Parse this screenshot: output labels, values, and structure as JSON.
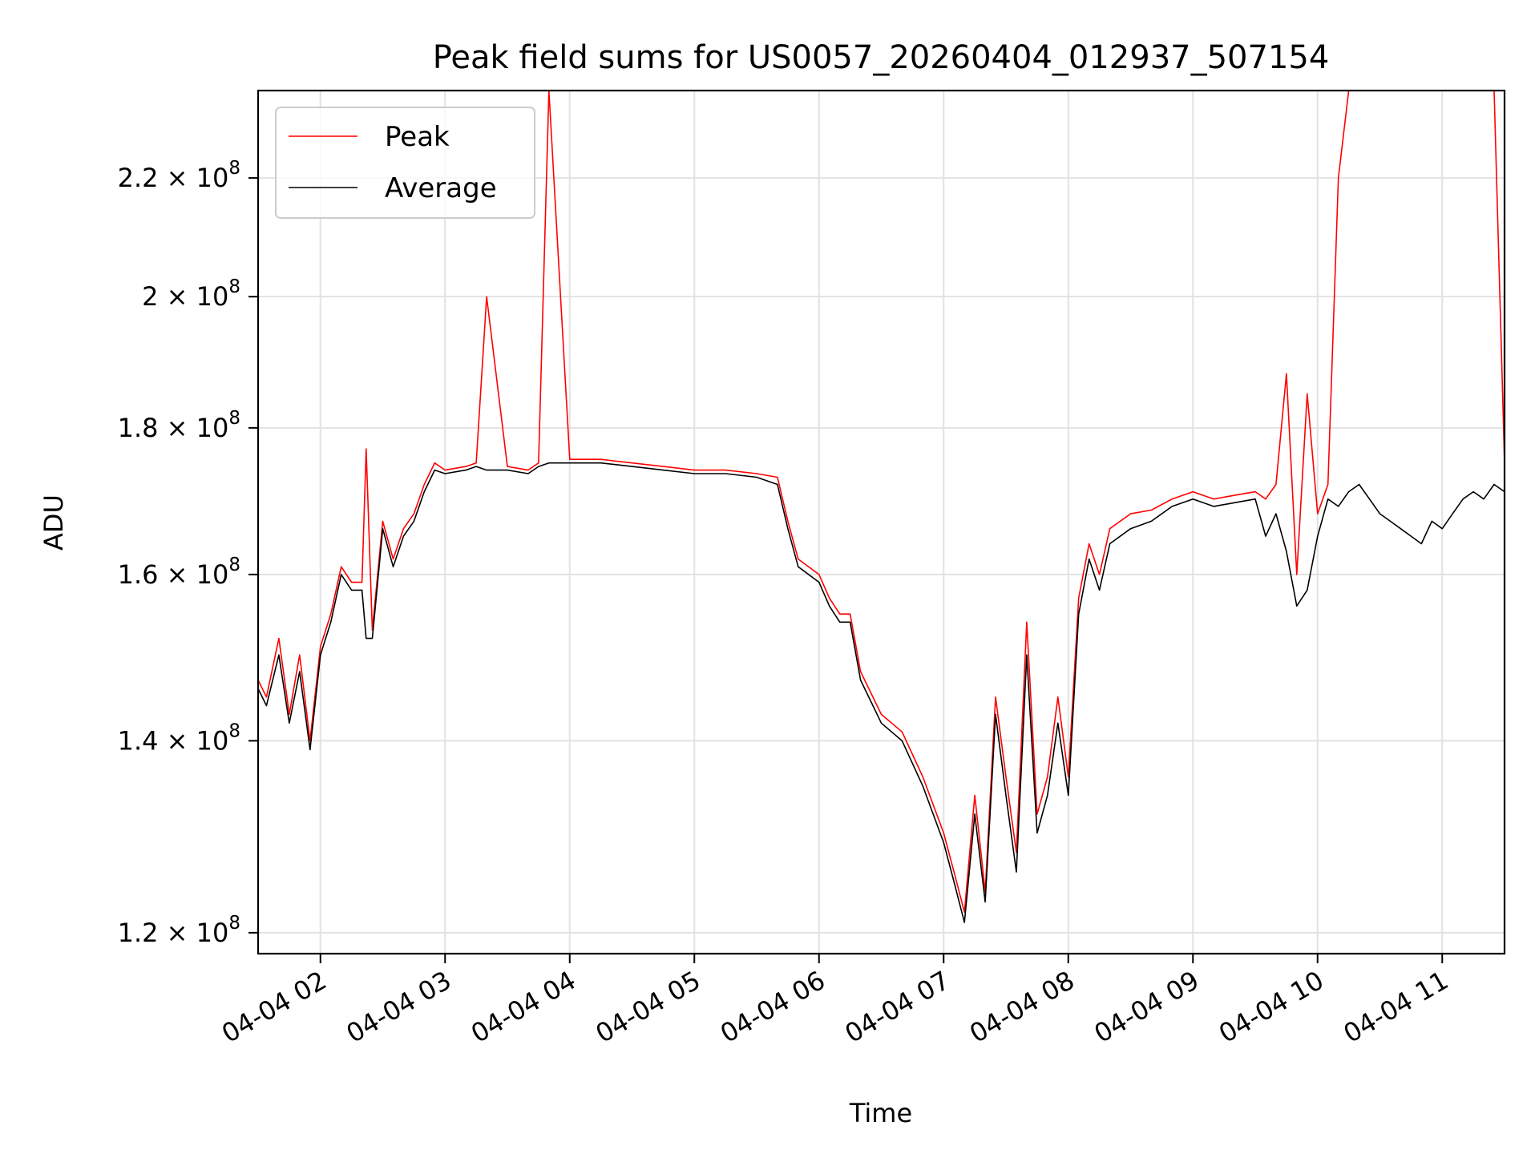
{
  "chart_data": {
    "type": "line",
    "title": "Peak field sums for US0057_20260404_012937_507154",
    "xlabel": "Time",
    "ylabel": "ADU",
    "y_scale": "log",
    "grid": true,
    "legend_position": "top-left",
    "xlim": [
      "2026-04-04 01:30",
      "2026-04-04 11:30"
    ],
    "ylim": [
      118000000,
      236000000
    ],
    "x_ticks": [
      "04-04 02",
      "04-04 03",
      "04-04 04",
      "04-04 05",
      "04-04 06",
      "04-04 07",
      "04-04 08",
      "04-04 09",
      "04-04 10",
      "04-04 11"
    ],
    "y_ticks": [
      {
        "value": 120000000,
        "mantissa": "1.2 × 10",
        "exponent": "8"
      },
      {
        "value": 140000000,
        "mantissa": "1.4 × 10",
        "exponent": "8"
      },
      {
        "value": 160000000,
        "mantissa": "1.6 × 10",
        "exponent": "8"
      },
      {
        "value": 180000000,
        "mantissa": "1.8 × 10",
        "exponent": "8"
      },
      {
        "value": 200000000,
        "mantissa": "2 × 10",
        "exponent": "8"
      },
      {
        "value": 220000000,
        "mantissa": "2.2 × 10",
        "exponent": "8"
      }
    ],
    "series": [
      {
        "name": "Peak",
        "color": "#ff0000",
        "x": [
          "2026-04-04 01:30",
          "2026-04-04 01:34",
          "2026-04-04 01:40",
          "2026-04-04 01:45",
          "2026-04-04 01:50",
          "2026-04-04 01:55",
          "2026-04-04 02:00",
          "2026-04-04 02:05",
          "2026-04-04 02:10",
          "2026-04-04 02:15",
          "2026-04-04 02:20",
          "2026-04-04 02:22",
          "2026-04-04 02:25",
          "2026-04-04 02:30",
          "2026-04-04 02:35",
          "2026-04-04 02:40",
          "2026-04-04 02:45",
          "2026-04-04 02:50",
          "2026-04-04 02:55",
          "2026-04-04 03:00",
          "2026-04-04 03:10",
          "2026-04-04 03:15",
          "2026-04-04 03:20",
          "2026-04-04 03:30",
          "2026-04-04 03:40",
          "2026-04-04 03:45",
          "2026-04-04 03:50",
          "2026-04-04 04:00",
          "2026-04-04 04:15",
          "2026-04-04 04:30",
          "2026-04-04 04:45",
          "2026-04-04 05:00",
          "2026-04-04 05:15",
          "2026-04-04 05:30",
          "2026-04-04 05:40",
          "2026-04-04 05:45",
          "2026-04-04 05:50",
          "2026-04-04 06:00",
          "2026-04-04 06:05",
          "2026-04-04 06:10",
          "2026-04-04 06:15",
          "2026-04-04 06:20",
          "2026-04-04 06:30",
          "2026-04-04 06:40",
          "2026-04-04 06:50",
          "2026-04-04 07:00",
          "2026-04-04 07:05",
          "2026-04-04 07:10",
          "2026-04-04 07:15",
          "2026-04-04 07:20",
          "2026-04-04 07:25",
          "2026-04-04 07:30",
          "2026-04-04 07:35",
          "2026-04-04 07:40",
          "2026-04-04 07:45",
          "2026-04-04 07:50",
          "2026-04-04 07:55",
          "2026-04-04 08:00",
          "2026-04-04 08:05",
          "2026-04-04 08:10",
          "2026-04-04 08:15",
          "2026-04-04 08:20",
          "2026-04-04 08:30",
          "2026-04-04 08:40",
          "2026-04-04 08:50",
          "2026-04-04 09:00",
          "2026-04-04 09:10",
          "2026-04-04 09:20",
          "2026-04-04 09:30",
          "2026-04-04 09:35",
          "2026-04-04 09:40",
          "2026-04-04 09:45",
          "2026-04-04 09:50",
          "2026-04-04 09:55",
          "2026-04-04 10:00",
          "2026-04-04 10:05",
          "2026-04-04 10:10",
          "2026-04-04 10:15",
          "2026-04-04 10:20",
          "2026-04-04 10:25",
          "2026-04-04 10:30",
          "2026-04-04 10:35",
          "2026-04-04 10:40",
          "2026-04-04 10:45",
          "2026-04-04 10:50",
          "2026-04-04 10:55",
          "2026-04-04 11:00",
          "2026-04-04 11:05",
          "2026-04-04 11:10",
          "2026-04-04 11:15",
          "2026-04-04 11:20",
          "2026-04-04 11:25",
          "2026-04-04 11:30"
        ],
        "y": [
          147000000,
          145000000,
          152000000,
          143000000,
          150000000,
          140000000,
          151000000,
          155000000,
          161000000,
          159000000,
          159000000,
          177000000,
          153000000,
          167000000,
          162000000,
          166000000,
          168000000,
          172000000,
          175000000,
          174000000,
          174500000,
          175000000,
          200000000,
          174500000,
          174000000,
          175000000,
          236000000,
          175500000,
          175500000,
          175000000,
          174500000,
          174000000,
          174000000,
          173500000,
          173000000,
          167000000,
          162000000,
          160000000,
          157000000,
          155000000,
          155000000,
          148000000,
          143000000,
          141000000,
          136000000,
          130000000,
          126000000,
          122000000,
          134000000,
          124000000,
          145000000,
          136000000,
          128000000,
          154000000,
          132000000,
          136000000,
          145000000,
          136000000,
          157000000,
          164000000,
          160000000,
          166000000,
          168000000,
          168500000,
          170000000,
          171000000,
          170000000,
          170500000,
          171000000,
          170000000,
          172000000,
          188000000,
          160000000,
          185000000,
          168000000,
          172000000,
          220000000,
          236000000,
          236000000,
          236000000,
          236000000,
          236000000,
          236000000,
          236000000,
          236000000,
          236000000,
          236000000,
          236000000,
          236000000,
          236000000,
          236000000,
          236000000,
          175000000
        ]
      },
      {
        "name": "Average",
        "color": "#000000",
        "x": [
          "2026-04-04 01:30",
          "2026-04-04 01:34",
          "2026-04-04 01:40",
          "2026-04-04 01:45",
          "2026-04-04 01:50",
          "2026-04-04 01:55",
          "2026-04-04 02:00",
          "2026-04-04 02:05",
          "2026-04-04 02:10",
          "2026-04-04 02:15",
          "2026-04-04 02:20",
          "2026-04-04 02:22",
          "2026-04-04 02:25",
          "2026-04-04 02:30",
          "2026-04-04 02:35",
          "2026-04-04 02:40",
          "2026-04-04 02:45",
          "2026-04-04 02:50",
          "2026-04-04 02:55",
          "2026-04-04 03:00",
          "2026-04-04 03:10",
          "2026-04-04 03:15",
          "2026-04-04 03:20",
          "2026-04-04 03:30",
          "2026-04-04 03:40",
          "2026-04-04 03:45",
          "2026-04-04 03:50",
          "2026-04-04 04:00",
          "2026-04-04 04:15",
          "2026-04-04 04:30",
          "2026-04-04 04:45",
          "2026-04-04 05:00",
          "2026-04-04 05:15",
          "2026-04-04 05:30",
          "2026-04-04 05:40",
          "2026-04-04 05:45",
          "2026-04-04 05:50",
          "2026-04-04 06:00",
          "2026-04-04 06:05",
          "2026-04-04 06:10",
          "2026-04-04 06:15",
          "2026-04-04 06:20",
          "2026-04-04 06:30",
          "2026-04-04 06:40",
          "2026-04-04 06:50",
          "2026-04-04 07:00",
          "2026-04-04 07:05",
          "2026-04-04 07:10",
          "2026-04-04 07:15",
          "2026-04-04 07:20",
          "2026-04-04 07:25",
          "2026-04-04 07:30",
          "2026-04-04 07:35",
          "2026-04-04 07:40",
          "2026-04-04 07:45",
          "2026-04-04 07:50",
          "2026-04-04 07:55",
          "2026-04-04 08:00",
          "2026-04-04 08:05",
          "2026-04-04 08:10",
          "2026-04-04 08:15",
          "2026-04-04 08:20",
          "2026-04-04 08:30",
          "2026-04-04 08:40",
          "2026-04-04 08:50",
          "2026-04-04 09:00",
          "2026-04-04 09:10",
          "2026-04-04 09:20",
          "2026-04-04 09:30",
          "2026-04-04 09:35",
          "2026-04-04 09:40",
          "2026-04-04 09:45",
          "2026-04-04 09:50",
          "2026-04-04 09:55",
          "2026-04-04 10:00",
          "2026-04-04 10:05",
          "2026-04-04 10:10",
          "2026-04-04 10:15",
          "2026-04-04 10:20",
          "2026-04-04 10:25",
          "2026-04-04 10:30",
          "2026-04-04 10:35",
          "2026-04-04 10:40",
          "2026-04-04 10:45",
          "2026-04-04 10:50",
          "2026-04-04 10:55",
          "2026-04-04 11:00",
          "2026-04-04 11:05",
          "2026-04-04 11:10",
          "2026-04-04 11:15",
          "2026-04-04 11:20",
          "2026-04-04 11:25",
          "2026-04-04 11:30"
        ],
        "y": [
          146000000,
          144000000,
          150000000,
          142000000,
          148000000,
          139000000,
          150000000,
          154000000,
          160000000,
          158000000,
          158000000,
          152000000,
          152000000,
          166000000,
          161000000,
          165000000,
          167000000,
          171000000,
          174000000,
          173500000,
          174000000,
          174500000,
          174000000,
          174000000,
          173500000,
          174500000,
          175000000,
          175000000,
          175000000,
          174500000,
          174000000,
          173500000,
          173500000,
          173000000,
          172000000,
          166000000,
          161000000,
          159000000,
          156000000,
          154000000,
          154000000,
          147000000,
          142000000,
          140000000,
          135000000,
          129000000,
          125000000,
          121000000,
          132000000,
          123000000,
          143000000,
          134000000,
          126000000,
          150000000,
          130000000,
          134000000,
          142000000,
          134000000,
          155000000,
          162000000,
          158000000,
          164000000,
          166000000,
          167000000,
          169000000,
          170000000,
          169000000,
          169500000,
          170000000,
          165000000,
          168000000,
          163000000,
          156000000,
          158000000,
          165000000,
          170000000,
          169000000,
          171000000,
          172000000,
          170000000,
          168000000,
          167000000,
          166000000,
          165000000,
          164000000,
          167000000,
          166000000,
          168000000,
          170000000,
          171000000,
          170000000,
          172000000,
          171000000
        ]
      }
    ]
  }
}
